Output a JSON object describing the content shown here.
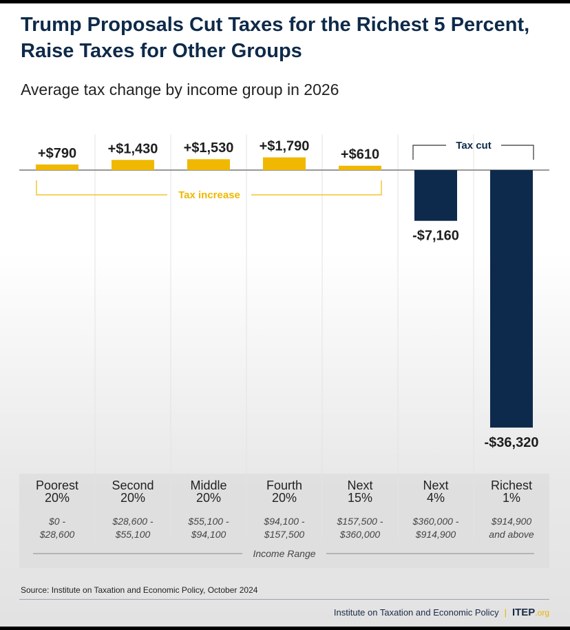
{
  "title": "Trump Proposals Cut Taxes for the Richest 5 Percent, Raise Taxes for Other Groups",
  "subtitle": "Average tax change by income group in 2026",
  "chart_data": {
    "type": "bar",
    "title": "Trump Proposals Cut Taxes for the Richest 5 Percent, Raise Taxes for Other Groups",
    "subtitle": "Average tax change by income group in 2026",
    "categories": [
      "Poorest 20%",
      "Second 20%",
      "Middle 20%",
      "Fourth 20%",
      "Next 15%",
      "Next 4%",
      "Richest 1%"
    ],
    "category_lines": [
      [
        "Poorest",
        "20%"
      ],
      [
        "Second",
        "20%"
      ],
      [
        "Middle",
        "20%"
      ],
      [
        "Fourth",
        "20%"
      ],
      [
        "Next",
        "15%"
      ],
      [
        "Next",
        "4%"
      ],
      [
        "Richest",
        "1%"
      ]
    ],
    "income_ranges": [
      [
        "$0 -",
        "$28,600"
      ],
      [
        "$28,600 -",
        "$55,100"
      ],
      [
        "$55,100 -",
        "$94,100"
      ],
      [
        "$94,100 -",
        "$157,500"
      ],
      [
        "$157,500 -",
        "$360,000"
      ],
      [
        "$360,000 -",
        "$914,900"
      ],
      [
        "$914,900",
        "and above"
      ]
    ],
    "values": [
      790,
      1430,
      1530,
      1790,
      610,
      -7160,
      -36320
    ],
    "data_labels": [
      "+$790",
      "+$1,430",
      "+$1,530",
      "+$1,790",
      "+$610",
      "-$7,160",
      "-$36,320"
    ],
    "xlabel": "Income Range",
    "annotations": {
      "increase": "Tax increase",
      "cut": "Tax cut"
    },
    "colors": {
      "increase": "#f0b800",
      "cut": "#0d2a4c",
      "title": "#0e2a4a"
    },
    "grid": "vertical separators",
    "legend": "none"
  },
  "source": "Source: Institute on Taxation and Economic Policy, October 2024",
  "footer": {
    "org": "Institute on Taxation and Economic Policy",
    "logo": "ITEP",
    "logo_suffix": ".org"
  }
}
